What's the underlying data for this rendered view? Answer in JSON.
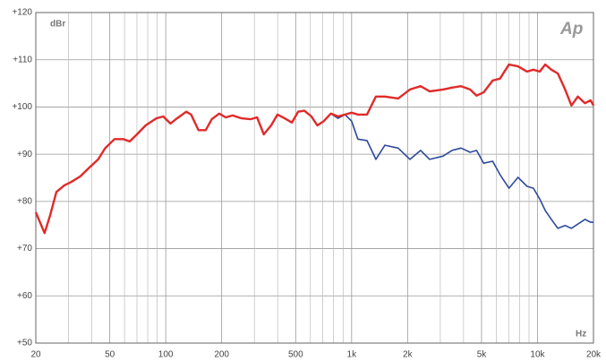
{
  "chart_data": {
    "type": "line",
    "y_unit_label": "dBr",
    "x_unit_label": "Hz",
    "logo": "Ap",
    "log_x": true,
    "grid": true,
    "xlim": [
      20,
      20000
    ],
    "xticks": [
      20,
      50,
      100,
      200,
      500,
      {
        "value": 1000,
        "label": "1k"
      },
      {
        "value": 2000,
        "label": "2k"
      },
      {
        "value": 5000,
        "label": "5k"
      },
      {
        "value": 10000,
        "label": "10k"
      },
      {
        "value": 20000,
        "label": "20k"
      }
    ],
    "xminorticks": [
      30,
      40,
      60,
      70,
      80,
      90,
      300,
      400,
      600,
      700,
      800,
      900,
      3000,
      4000,
      6000,
      7000,
      8000,
      9000
    ],
    "ylim": [
      50,
      120
    ],
    "yticks": [
      {
        "value": 50,
        "label": "+50"
      },
      {
        "value": 60,
        "label": "+60"
      },
      {
        "value": 70,
        "label": "+70"
      },
      {
        "value": 80,
        "label": "+80"
      },
      {
        "value": 90,
        "label": "+90"
      },
      {
        "value": 100,
        "label": "+100"
      },
      {
        "value": 110,
        "label": "+110"
      },
      {
        "value": 120,
        "label": "+120"
      }
    ],
    "x": [
      20,
      22.3,
      23.9,
      25.8,
      28.5,
      31,
      34.7,
      38.9,
      43.3,
      47.3,
      53,
      59,
      64,
      70,
      78,
      89,
      97,
      106,
      115,
      129,
      137,
      150,
      164,
      177,
      194,
      210,
      229,
      256,
      286,
      310,
      337,
      369,
      399,
      436,
      477,
      516,
      557,
      608,
      654,
      708,
      773,
      845,
      922,
      1000,
      1080,
      1210,
      1350,
      1510,
      1780,
      2060,
      2350,
      2630,
      3100,
      3470,
      3880,
      4340,
      4700,
      5130,
      5740,
      6280,
      7020,
      7850,
      8780,
      9500,
      10280,
      11000,
      11880,
      12860,
      14070,
      15230,
      16480,
      18000,
      19300,
      20000
    ],
    "series": [
      {
        "color": "#2f4a9a",
        "values": [
          77.7,
          73.3,
          77.1,
          82,
          83.4,
          84.1,
          85.3,
          87.2,
          88.9,
          91.3,
          93.2,
          93.2,
          92.7,
          94.2,
          96.1,
          97.6,
          98,
          96.5,
          97.6,
          99,
          98.4,
          95.1,
          95.1,
          97.4,
          98.6,
          97.8,
          98.2,
          97.6,
          97.4,
          97.8,
          94.2,
          96.1,
          98.4,
          97.6,
          96.7,
          99,
          99.2,
          98,
          96.1,
          97,
          98.6,
          97.6,
          98.4,
          97,
          93.2,
          92.9,
          88.9,
          91.9,
          91.3,
          88.9,
          90.8,
          88.9,
          89.6,
          90.8,
          91.3,
          90.4,
          90.8,
          88.1,
          88.5,
          85.7,
          82.8,
          85.1,
          83.2,
          82.8,
          80.5,
          78.1,
          76.2,
          74.3,
          74.9,
          74.3,
          75.2,
          76.2,
          75.6,
          75.6
        ]
      },
      {
        "color": "#e02a2a",
        "values": [
          77.7,
          73.3,
          77.1,
          82,
          83.4,
          84.1,
          85.3,
          87.2,
          88.9,
          91.3,
          93.2,
          93.2,
          92.7,
          94.2,
          96.1,
          97.6,
          98,
          96.5,
          97.6,
          99,
          98.4,
          95.1,
          95.1,
          97.4,
          98.6,
          97.8,
          98.2,
          97.6,
          97.4,
          97.8,
          94.2,
          96.1,
          98.4,
          97.6,
          96.7,
          99,
          99.2,
          98,
          96.1,
          97,
          98.6,
          98,
          98.4,
          98.8,
          98.4,
          98.4,
          102.2,
          102.2,
          101.8,
          103.7,
          104.4,
          103.3,
          103.7,
          104.1,
          104.4,
          103.7,
          102.4,
          103.1,
          105.6,
          106,
          109,
          108.6,
          107.5,
          107.9,
          107.5,
          109,
          107.9,
          107.1,
          103.7,
          100.3,
          102.2,
          100.8,
          101.4,
          100.3
        ]
      }
    ]
  }
}
